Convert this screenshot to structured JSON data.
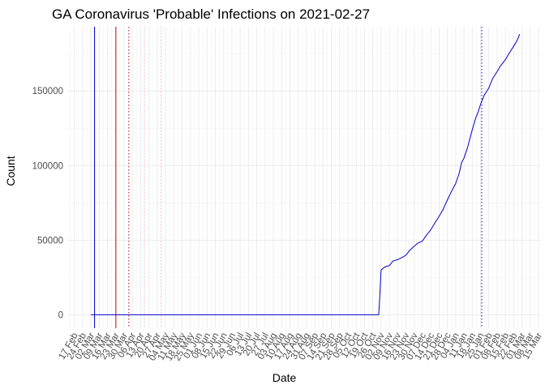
{
  "chart_data": {
    "type": "line",
    "title": "GA Coronavirus 'Probable' Infections on 2021-02-27",
    "xlabel": "Date",
    "ylabel": "Count",
    "x_axis_type": "date",
    "xlim": [
      "2020-02-11",
      "2021-03-17"
    ],
    "ylim": [
      -9000,
      193000
    ],
    "grid": true,
    "legend": "none",
    "x_ticks": [
      "17 Feb",
      "24 Feb",
      "02 Mar",
      "09 Mar",
      "16 Mar",
      "23 Mar",
      "30 Mar",
      "06 Apr",
      "13 Apr",
      "20 Apr",
      "27 Apr",
      "04 May",
      "11 May",
      "18 May",
      "25 May",
      "01 Jun",
      "08 Jun",
      "15 Jun",
      "22 Jun",
      "29 Jun",
      "06 Jul",
      "13 Jul",
      "20 Jul",
      "27 Jul",
      "03 Aug",
      "10 Aug",
      "17 Aug",
      "24 Aug",
      "31 Aug",
      "07 Sep",
      "14 Sep",
      "21 Sep",
      "28 Sep",
      "05 Oct",
      "12 Oct",
      "19 Oct",
      "26 Oct",
      "02 Nov",
      "09 Nov",
      "16 Nov",
      "23 Nov",
      "30 Nov",
      "07 Dec",
      "14 Dec",
      "21 Dec",
      "28 Dec",
      "04 Jan",
      "11 Jan",
      "18 Jan",
      "25 Jan",
      "01 Feb",
      "08 Feb",
      "15 Feb",
      "22 Feb",
      "01 Mar",
      "08 Mar",
      "15 Mar"
    ],
    "x_tick_dates": [
      "2020-02-17",
      "2020-02-24",
      "2020-03-02",
      "2020-03-09",
      "2020-03-16",
      "2020-03-23",
      "2020-03-30",
      "2020-04-06",
      "2020-04-13",
      "2020-04-20",
      "2020-04-27",
      "2020-05-04",
      "2020-05-11",
      "2020-05-18",
      "2020-05-25",
      "2020-06-01",
      "2020-06-08",
      "2020-06-15",
      "2020-06-22",
      "2020-06-29",
      "2020-07-06",
      "2020-07-13",
      "2020-07-20",
      "2020-07-27",
      "2020-08-03",
      "2020-08-10",
      "2020-08-17",
      "2020-08-24",
      "2020-08-31",
      "2020-09-07",
      "2020-09-14",
      "2020-09-21",
      "2020-09-28",
      "2020-10-05",
      "2020-10-12",
      "2020-10-19",
      "2020-10-26",
      "2020-11-02",
      "2020-11-09",
      "2020-11-16",
      "2020-11-23",
      "2020-11-30",
      "2020-12-07",
      "2020-12-14",
      "2020-12-21",
      "2020-12-28",
      "2021-01-04",
      "2021-01-11",
      "2021-01-18",
      "2021-01-25",
      "2021-02-01",
      "2021-02-08",
      "2021-02-15",
      "2021-02-22",
      "2021-03-01",
      "2021-03-08",
      "2021-03-15"
    ],
    "y_ticks": [
      0,
      50000,
      100000,
      150000
    ],
    "y_tick_labels": [
      "0",
      "50000",
      "100000",
      "150000"
    ],
    "series": [
      {
        "color": "#0000cd",
        "points": [
          [
            "2020-03-02",
            0
          ],
          [
            "2020-10-31",
            0
          ],
          [
            "2020-11-01",
            14000
          ],
          [
            "2020-11-02",
            30000
          ],
          [
            "2020-11-05",
            32000
          ],
          [
            "2020-11-09",
            33000
          ],
          [
            "2020-11-12",
            36000
          ],
          [
            "2020-11-16",
            37000
          ],
          [
            "2020-11-20",
            38500
          ],
          [
            "2020-11-23",
            40000
          ],
          [
            "2020-11-26",
            43000
          ],
          [
            "2020-11-30",
            46000
          ],
          [
            "2020-12-03",
            48000
          ],
          [
            "2020-12-07",
            49500
          ],
          [
            "2020-12-10",
            53000
          ],
          [
            "2020-12-14",
            57000
          ],
          [
            "2020-12-17",
            61000
          ],
          [
            "2020-12-21",
            66000
          ],
          [
            "2020-12-24",
            70000
          ],
          [
            "2020-12-28",
            77000
          ],
          [
            "2020-12-31",
            82000
          ],
          [
            "2021-01-04",
            88000
          ],
          [
            "2021-01-07",
            95000
          ],
          [
            "2021-01-09",
            102000
          ],
          [
            "2021-01-11",
            105000
          ],
          [
            "2021-01-14",
            112000
          ],
          [
            "2021-01-16",
            118000
          ],
          [
            "2021-01-18",
            124000
          ],
          [
            "2021-01-21",
            132000
          ],
          [
            "2021-01-23",
            136000
          ],
          [
            "2021-01-25",
            141000
          ],
          [
            "2021-01-28",
            147000
          ],
          [
            "2021-02-01",
            152000
          ],
          [
            "2021-02-04",
            158000
          ],
          [
            "2021-02-08",
            163000
          ],
          [
            "2021-02-11",
            167000
          ],
          [
            "2021-02-15",
            171000
          ],
          [
            "2021-02-18",
            175000
          ],
          [
            "2021-02-22",
            180000
          ],
          [
            "2021-02-25",
            184000
          ],
          [
            "2021-02-27",
            188000
          ]
        ]
      }
    ],
    "reference_lines": [
      {
        "date": "2020-03-05",
        "color": "#0000cd",
        "style": "solid"
      },
      {
        "date": "2020-03-23",
        "color": "#cd0000",
        "style": "solid"
      },
      {
        "date": "2020-04-03",
        "color": "#cd0000",
        "style": "dotted"
      },
      {
        "date": "2020-04-16",
        "color": "#ffb6c1",
        "style": "dotted"
      },
      {
        "date": "2020-04-30",
        "color": "#ffb6c1",
        "style": "dotted"
      },
      {
        "date": "2021-01-26",
        "color": "#0000cd",
        "style": "dotted"
      }
    ]
  }
}
